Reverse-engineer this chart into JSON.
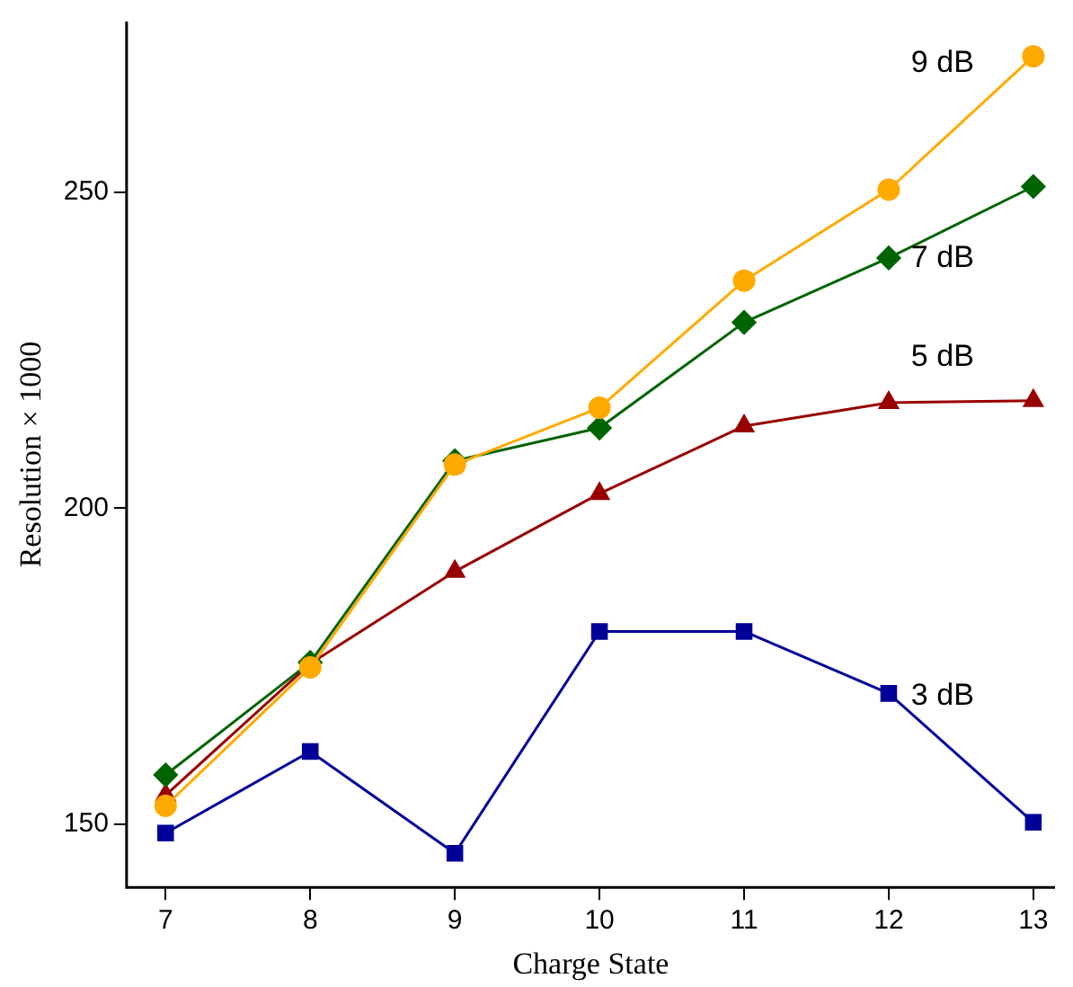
{
  "chart_data": {
    "type": "line",
    "xlabel": "Charge State",
    "ylabel": "Resolution × 1000",
    "x": [
      7,
      8,
      9,
      10,
      11,
      12,
      13
    ],
    "xlim": [
      6.73,
      13.15
    ],
    "xticks": [
      7,
      8,
      9,
      10,
      11,
      12,
      13
    ],
    "ylim": [
      140,
      277
    ],
    "yticks": [
      150,
      200,
      250
    ],
    "grid": false,
    "legend": false,
    "line_style": "solid",
    "series": [
      {
        "name": "9 dB",
        "color": "#ffaa00",
        "marker": "circle",
        "values": [
          152.9,
          174.8,
          206.9,
          215.9,
          236.0,
          250.4,
          271.5
        ]
      },
      {
        "name": "7 dB",
        "color": "#006400",
        "marker": "diamond",
        "values": [
          157.8,
          175.6,
          207.5,
          212.7,
          229.4,
          239.6,
          250.9
        ]
      },
      {
        "name": "5 dB",
        "color": "#990000",
        "marker": "triangle",
        "values": [
          154.6,
          175.4,
          190.0,
          202.3,
          213.0,
          216.7,
          217.0
        ]
      },
      {
        "name": "3 dB",
        "color": "#000099",
        "marker": "square",
        "values": [
          148.6,
          161.5,
          145.4,
          180.5,
          180.5,
          170.7,
          150.3
        ]
      }
    ]
  }
}
